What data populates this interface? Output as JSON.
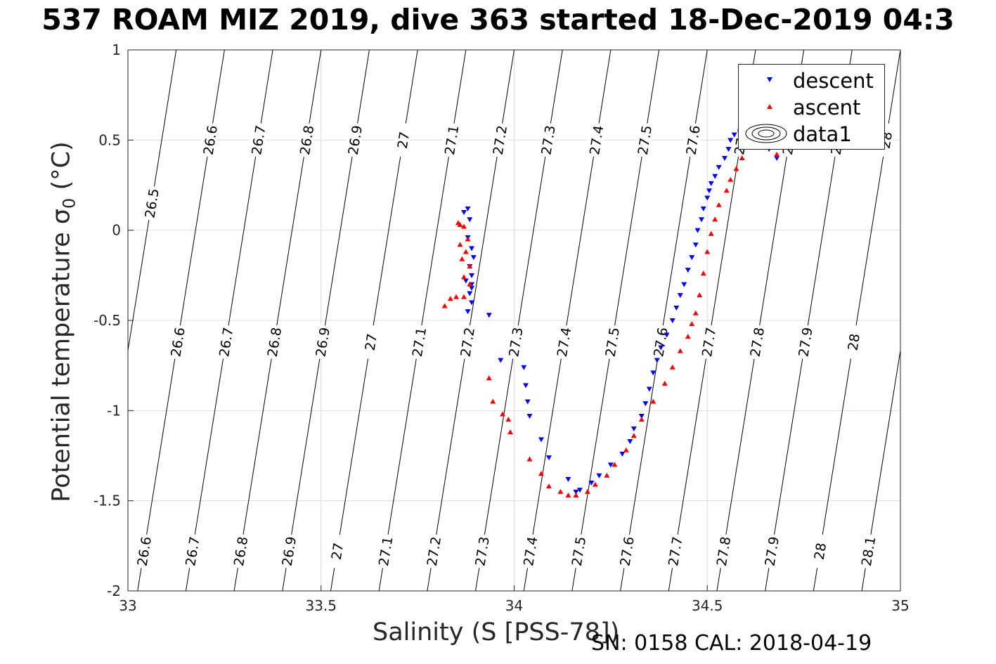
{
  "chart_data": {
    "type": "scatter",
    "title": "537 ROAM MIZ 2019, dive 363 started 18-Dec-2019 04:3",
    "xlabel": "Salinity (S [PSS-78])",
    "ylabel": "Potential temperature",
    "ylabel_symbol": "σ",
    "ylabel_sub": "0",
    "ylabel_unit": "(°C)",
    "xlim": [
      33,
      35
    ],
    "ylim": [
      -2,
      1
    ],
    "xticks": [
      "33",
      "33.5",
      "34",
      "34.5",
      "35"
    ],
    "yticks": [
      "1",
      "0.5",
      "0",
      "-0.5",
      "-1",
      "-1.5",
      "-2"
    ],
    "grid": true,
    "legend_position": "top-right",
    "legend": [
      "descent",
      "ascent",
      "data1"
    ],
    "contour_levels": [
      "26.5",
      "26.6",
      "26.7",
      "26.8",
      "26.9",
      "27",
      "27.1",
      "27.2",
      "27.3",
      "27.4",
      "27.5",
      "27.6",
      "27.7",
      "27.8",
      "27.9",
      "28",
      "28.1"
    ],
    "series": [
      {
        "name": "descent",
        "color": "#0000ff",
        "marker": "triangle-down",
        "x": [
          33.88,
          33.87,
          33.885,
          33.88,
          33.89,
          33.895,
          33.885,
          33.89,
          33.89,
          33.885,
          33.89,
          33.88,
          33.89,
          33.875,
          33.935,
          33.965,
          34.025,
          34.03,
          34.035,
          34.04,
          34.07,
          34.09,
          34.14,
          34.16,
          34.17,
          34.2,
          34.22,
          34.25,
          34.28,
          34.3,
          34.31,
          34.33,
          34.34,
          34.35,
          34.36,
          34.37,
          34.38,
          34.395,
          34.41,
          34.42,
          34.43,
          34.44,
          34.45,
          34.46,
          34.47,
          34.475,
          34.485,
          34.49,
          34.5,
          34.505,
          34.51,
          34.52,
          34.53,
          34.545,
          34.555,
          34.56,
          34.57,
          34.585,
          34.61,
          34.635,
          34.66,
          34.68
        ],
        "y": [
          0.12,
          0.1,
          0.06,
          -0.04,
          -0.1,
          -0.15,
          -0.2,
          -0.25,
          -0.3,
          -0.35,
          -0.4,
          -0.45,
          -0.32,
          -0.28,
          -0.47,
          -0.72,
          -0.76,
          -0.86,
          -0.95,
          -1.03,
          -1.16,
          -1.26,
          -1.38,
          -1.45,
          -1.44,
          -1.4,
          -1.36,
          -1.3,
          -1.24,
          -1.17,
          -1.1,
          -1.03,
          -0.96,
          -0.88,
          -0.79,
          -0.72,
          -0.65,
          -0.58,
          -0.5,
          -0.43,
          -0.36,
          -0.3,
          -0.22,
          -0.15,
          -0.08,
          0.0,
          0.06,
          0.12,
          0.18,
          0.22,
          0.26,
          0.3,
          0.35,
          0.4,
          0.45,
          0.5,
          0.53,
          0.55,
          0.58,
          0.6,
          0.45,
          0.4
        ]
      },
      {
        "name": "ascent",
        "color": "#ff0000",
        "marker": "triangle-up",
        "x": [
          33.82,
          33.835,
          33.85,
          33.87,
          33.885,
          33.885,
          33.875,
          33.88,
          33.87,
          33.86,
          33.855,
          33.86,
          33.865,
          33.87,
          33.935,
          33.945,
          33.97,
          33.985,
          33.99,
          34.04,
          34.07,
          34.09,
          34.12,
          34.14,
          34.16,
          34.19,
          34.21,
          34.24,
          34.26,
          34.29,
          34.31,
          34.33,
          34.36,
          34.39,
          34.41,
          34.43,
          34.45,
          34.46,
          34.47,
          34.48,
          34.49,
          34.5,
          34.51,
          34.52,
          34.53,
          34.55,
          34.56,
          34.575,
          34.59,
          34.61,
          34.64,
          34.68
        ],
        "y": [
          -0.42,
          -0.38,
          -0.37,
          -0.37,
          -0.3,
          -0.2,
          -0.12,
          -0.05,
          0.02,
          0.03,
          0.04,
          -0.08,
          -0.16,
          -0.26,
          -0.82,
          -0.95,
          -1.02,
          -1.05,
          -1.12,
          -1.27,
          -1.35,
          -1.42,
          -1.45,
          -1.47,
          -1.47,
          -1.45,
          -1.41,
          -1.36,
          -1.3,
          -1.22,
          -1.14,
          -1.05,
          -0.95,
          -0.85,
          -0.76,
          -0.67,
          -0.59,
          -0.52,
          -0.46,
          -0.36,
          -0.24,
          -0.12,
          -0.02,
          0.06,
          0.14,
          0.22,
          0.28,
          0.34,
          0.4,
          0.46,
          0.53,
          0.42
        ]
      }
    ]
  },
  "footer": "SN: 0158  CAL: 2018-04-19"
}
